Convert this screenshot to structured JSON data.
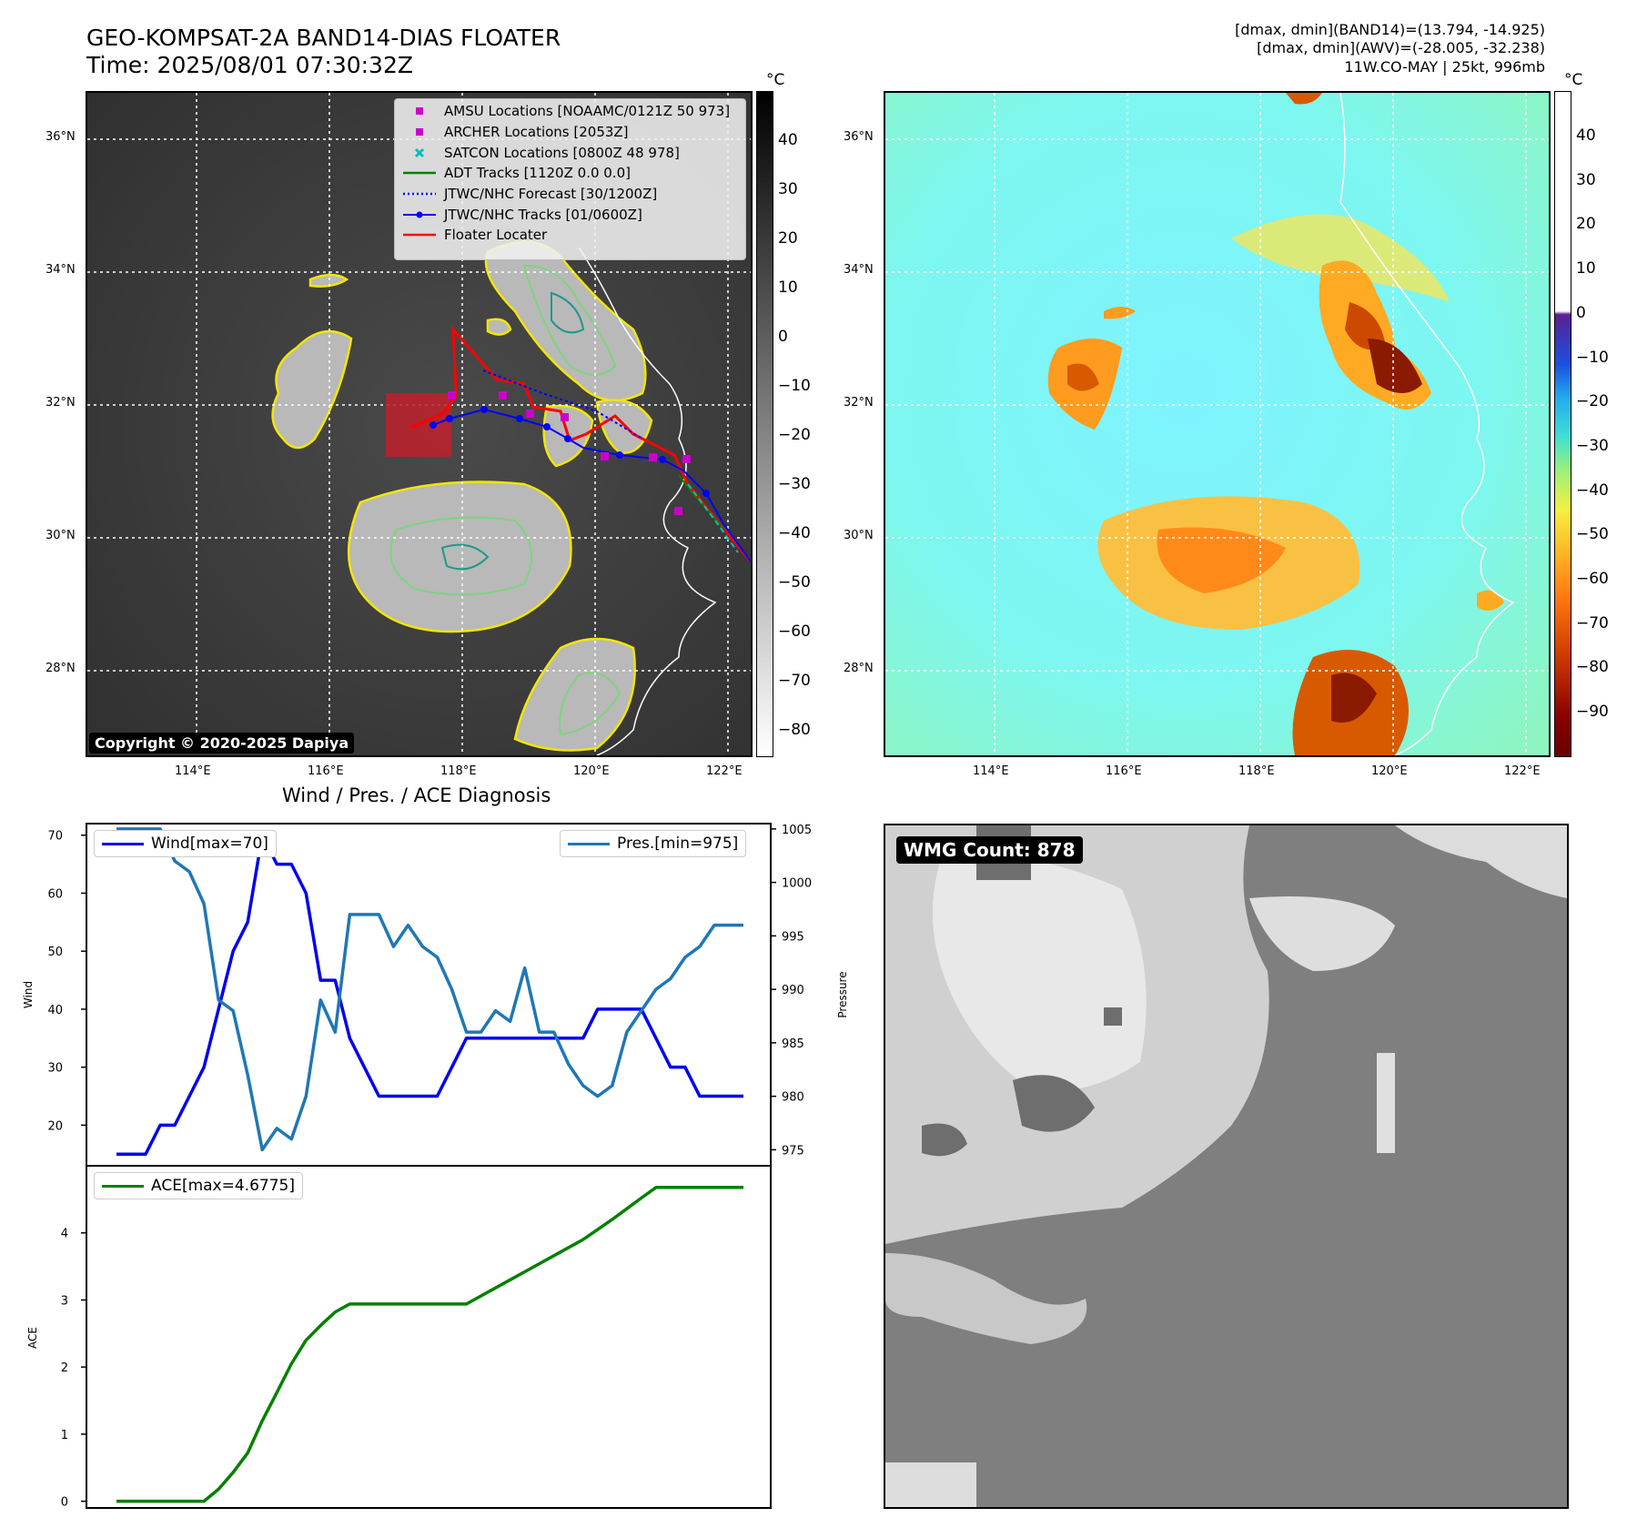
{
  "header": {
    "title_line1": "GEO-KOMPSAT-2A BAND14-DIAS FLOATER",
    "title_line2": "Time: 2025/08/01 07:30:32Z",
    "info_line1": "[dmax, dmin](BAND14)=(13.794, -14.925)",
    "info_line2": "[dmax, dmin](AWV)=(-28.005, -32.238)",
    "info_line3": "11W.CO-MAY | 25kt, 996mb"
  },
  "map_axes": {
    "lat_ticks": [
      "36°N",
      "34°N",
      "32°N",
      "30°N",
      "28°N"
    ],
    "lon_ticks": [
      "114°E",
      "116°E",
      "118°E",
      "120°E",
      "122°E"
    ]
  },
  "left_map": {
    "copyright": "Copyright © 2020-2025 Dapiya",
    "legend": [
      {
        "label": "AMSU Locations [NOAAMC/0121Z 50 973]",
        "symbol": "square",
        "color": "#cc00cc"
      },
      {
        "label": "ARCHER Locations [2053Z]",
        "symbol": "square",
        "color": "#cc00cc"
      },
      {
        "label": "SATCON Locations [0800Z 48 978]",
        "symbol": "x",
        "color": "#00bfbf"
      },
      {
        "label": "ADT Tracks [1120Z 0.0 0.0]",
        "symbol": "line",
        "color": "#008000"
      },
      {
        "label": "JTWC/NHC Forecast [30/1200Z]",
        "symbol": "dotted",
        "color": "#0000ff"
      },
      {
        "label": "JTWC/NHC Tracks [01/0600Z]",
        "symbol": "line-dot",
        "color": "#0000ff"
      },
      {
        "label": "Floater Locater",
        "symbol": "line",
        "color": "#ff0000"
      }
    ]
  },
  "colorbar_left": {
    "unit": "°C",
    "ticks": [
      "40",
      "30",
      "20",
      "10",
      "0",
      "−10",
      "−20",
      "−30",
      "−40",
      "−50",
      "−60",
      "−70",
      "−80"
    ]
  },
  "colorbar_right": {
    "unit": "°C",
    "ticks": [
      "40",
      "30",
      "20",
      "10",
      "0",
      "−10",
      "−20",
      "−30",
      "−40",
      "−50",
      "−60",
      "−70",
      "−80",
      "−90"
    ]
  },
  "wmg": {
    "label": "WMG Count: 878"
  },
  "chart_data": [
    {
      "type": "line",
      "title": "Wind / Pres. / ACE Diagnosis",
      "ylabel": "Wind",
      "ylabel_right": "Pressure",
      "ylim": [
        13,
        72
      ],
      "ylim_right": [
        973.5,
        1005.5
      ],
      "yticks": [
        20,
        30,
        40,
        50,
        60,
        70
      ],
      "yticks_right": [
        975,
        980,
        985,
        990,
        995,
        1000,
        1005
      ],
      "x": [
        0,
        1,
        2,
        3,
        4,
        5,
        6,
        7,
        8,
        9,
        10,
        11,
        12,
        13,
        14,
        15,
        16,
        17,
        18,
        19,
        20,
        21,
        22,
        23,
        24,
        25,
        26,
        27,
        28,
        29,
        30,
        31,
        32,
        33,
        34,
        35,
        36,
        37,
        38,
        39,
        40,
        41,
        42,
        43
      ],
      "series": [
        {
          "name": "Wind[max=70]",
          "color": "#0000ee",
          "values": [
            15,
            15,
            15,
            20,
            20,
            25,
            30,
            40,
            50,
            55,
            70,
            65,
            65,
            60,
            45,
            45,
            35,
            30,
            25,
            25,
            25,
            25,
            25,
            30,
            35,
            35,
            35,
            35,
            35,
            35,
            35,
            35,
            35,
            40,
            40,
            40,
            40,
            35,
            30,
            30,
            25,
            25,
            25,
            25
          ]
        },
        {
          "name": "Pres.[min=975]",
          "color": "#1f77b4",
          "axis": "right",
          "values": [
            1005,
            1005,
            1005,
            1005,
            1002,
            1001,
            998,
            989,
            988,
            982,
            975,
            977,
            976,
            980,
            989,
            986,
            997,
            997,
            997,
            994,
            996,
            994,
            993,
            990,
            986,
            986,
            988,
            987,
            992,
            986,
            986,
            983,
            981,
            980,
            981,
            986,
            988,
            990,
            991,
            993,
            994,
            996,
            996,
            996
          ]
        }
      ]
    },
    {
      "type": "line",
      "ylabel": "ACE",
      "ylim": [
        -0.1,
        5.0
      ],
      "yticks": [
        0,
        1,
        2,
        3,
        4
      ],
      "x": [
        0,
        1,
        2,
        3,
        4,
        5,
        6,
        7,
        8,
        9,
        10,
        11,
        12,
        13,
        14,
        15,
        16,
        17,
        18,
        19,
        20,
        21,
        22,
        23,
        24,
        25,
        26,
        27,
        28,
        29,
        30,
        31,
        32,
        33,
        34,
        35,
        36,
        37,
        38,
        39,
        40,
        41,
        42,
        43
      ],
      "series": [
        {
          "name": "ACE[max=4.6775]",
          "color": "#008000",
          "values": [
            0,
            0,
            0,
            0,
            0,
            0,
            0,
            0.18,
            0.43,
            0.72,
            1.2,
            1.62,
            2.05,
            2.4,
            2.62,
            2.82,
            2.94,
            2.94,
            2.94,
            2.94,
            2.94,
            2.94,
            2.94,
            2.94,
            2.94,
            3.06,
            3.18,
            3.3,
            3.42,
            3.54,
            3.66,
            3.78,
            3.9,
            4.05,
            4.2,
            4.36,
            4.52,
            4.6775,
            4.6775,
            4.6775,
            4.6775,
            4.6775,
            4.6775,
            4.6775
          ]
        }
      ]
    }
  ]
}
